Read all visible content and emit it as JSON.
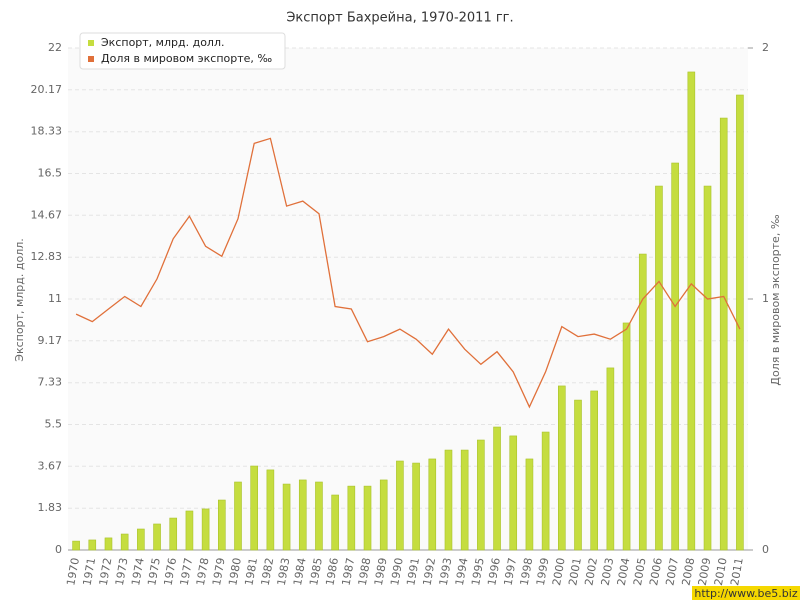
{
  "chart_data": {
    "type": "bar+line",
    "title": "Экспорт Бахрейна, 1970-2011 гг.",
    "y_label": "Экспорт, млрд. долл.",
    "y2_label": "Доля в мировом экспорте, ‰",
    "watermark": "http://www.be5.biz",
    "categories": [
      "1970",
      "1971",
      "1972",
      "1973",
      "1974",
      "1975",
      "1976",
      "1977",
      "1978",
      "1979",
      "1980",
      "1981",
      "1982",
      "1983",
      "1984",
      "1985",
      "1986",
      "1987",
      "1988",
      "1989",
      "1990",
      "1991",
      "1992",
      "1993",
      "1994",
      "1995",
      "1996",
      "1997",
      "1998",
      "1999",
      "2000",
      "2001",
      "2002",
      "2003",
      "2004",
      "2005",
      "2006",
      "2007",
      "2008",
      "2009",
      "2010",
      "2011"
    ],
    "series": [
      {
        "name": "Экспорт, млрд. долл.",
        "type": "bar",
        "color": "#c5dd3f",
        "values": [
          0.39,
          0.44,
          0.53,
          0.7,
          0.92,
          1.14,
          1.4,
          1.71,
          1.8,
          2.19,
          2.98,
          3.68,
          3.51,
          2.89,
          3.07,
          2.98,
          2.41,
          2.8,
          2.8,
          3.07,
          3.9,
          3.81,
          3.99,
          4.38,
          4.38,
          4.82,
          5.39,
          5.0,
          3.99,
          5.17,
          7.19,
          6.57,
          6.97,
          7.98,
          9.95,
          12.97,
          15.95,
          16.96,
          20.95,
          15.95,
          18.93,
          19.94
        ]
      },
      {
        "name": "Доля в мировом экспорте, ‰",
        "type": "line",
        "axis": "y2",
        "color": "#e0703a",
        "values": [
          0.94,
          0.91,
          0.96,
          1.01,
          0.97,
          1.08,
          1.24,
          1.33,
          1.21,
          1.17,
          1.32,
          1.62,
          1.64,
          1.37,
          1.39,
          1.34,
          0.97,
          0.96,
          0.83,
          0.85,
          0.88,
          0.84,
          0.78,
          0.88,
          0.8,
          0.74,
          0.79,
          0.71,
          0.57,
          0.71,
          0.89,
          0.85,
          0.86,
          0.84,
          0.88,
          1.0,
          1.07,
          0.97,
          1.06,
          1.0,
          1.01,
          0.88
        ]
      }
    ],
    "ylim": [
      0,
      22
    ],
    "yticks": [
      0,
      1.83,
      3.67,
      5.5,
      7.33,
      9.17,
      11,
      12.83,
      14.67,
      16.5,
      18.33,
      20.17,
      22
    ],
    "y2lim": [
      0,
      2
    ],
    "y2ticks": [
      0,
      1,
      2
    ],
    "grid": true
  }
}
